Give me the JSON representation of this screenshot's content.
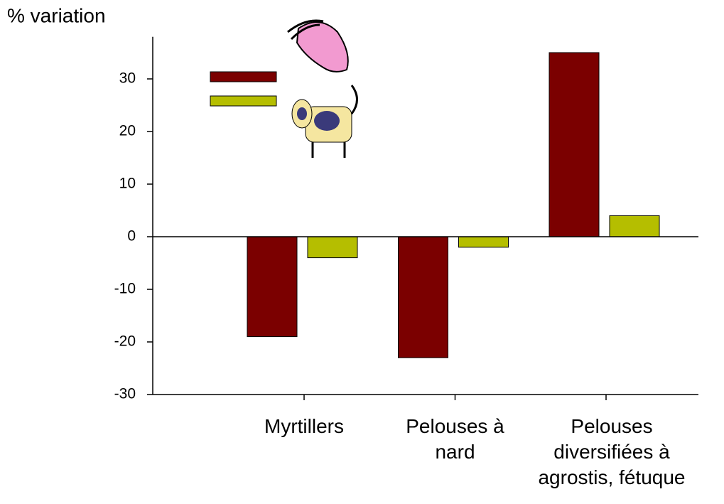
{
  "chart_data": {
    "type": "bar",
    "y_label": "% variation",
    "categories": [
      "Myrtillers",
      "Pelouses à\nnard",
      "Pelouses\ndiversifiées à\nagrostis, fétuque"
    ],
    "series": [
      {
        "color": "#7b0000",
        "values": [
          -19,
          -23,
          35
        ]
      },
      {
        "color": "#b5be00",
        "values": [
          -4,
          -2,
          4
        ]
      }
    ],
    "ylim": [
      -30,
      38
    ],
    "yticks": [
      -30,
      -20,
      -10,
      0,
      10,
      20,
      30
    ]
  }
}
